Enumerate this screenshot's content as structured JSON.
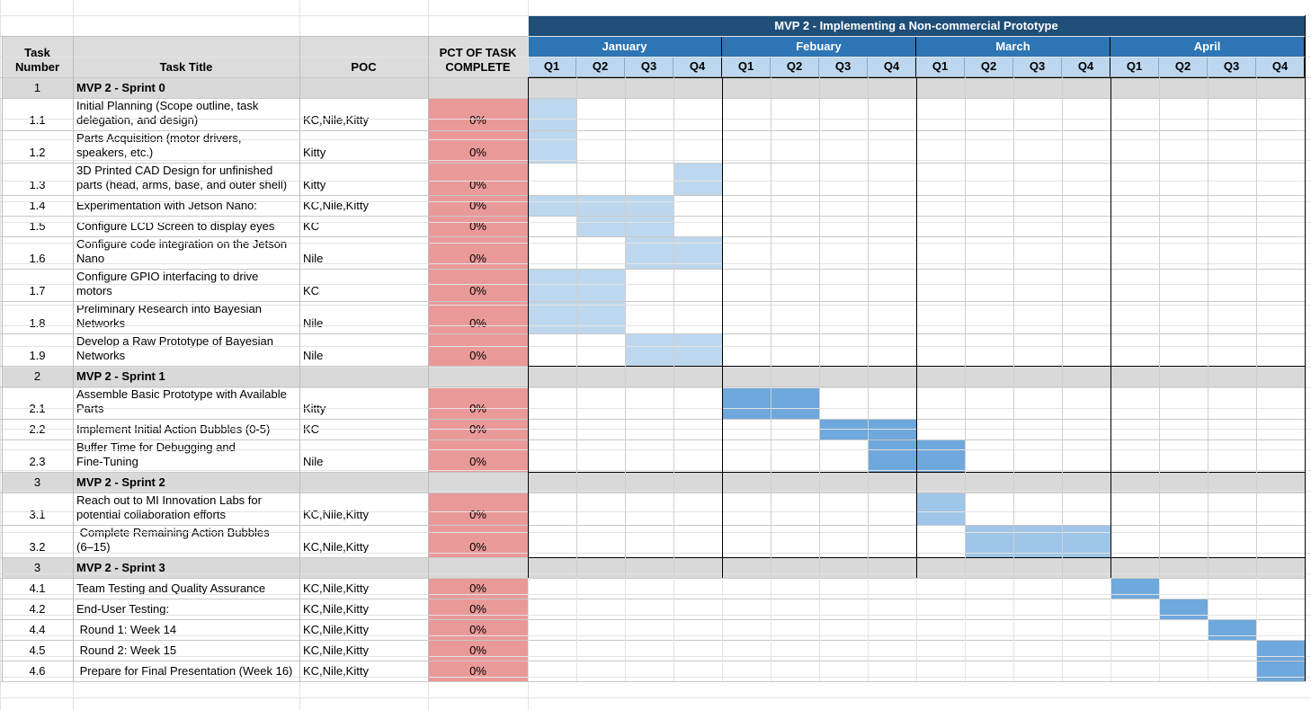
{
  "project_title": "MVP 2 -  Implementing a Non-commercial Prototype",
  "headers": {
    "task_number": "Task\nNumber",
    "task_title": "Task Title",
    "poc": "POC",
    "pct": "PCT OF TASK\nCOMPLETE"
  },
  "months": [
    "January",
    "Febuary",
    "March",
    "April"
  ],
  "quarters": [
    "Q1",
    "Q2",
    "Q3",
    "Q4",
    "Q1",
    "Q2",
    "Q3",
    "Q4",
    "Q1",
    "Q2",
    "Q3",
    "Q4",
    "Q1",
    "Q2",
    "Q3",
    "Q4"
  ],
  "colors": {
    "title_bar": "#1f4e78",
    "month_header": "#2e75b6",
    "quarter_header": "#bdd7ee",
    "section_row": "#d9d9d9",
    "pct_cell": "#ea9999",
    "bar_light": "#bdd7ee",
    "bar_medium": "#6fa8dc",
    "bar_pale": "#9fc5e8"
  },
  "rows": [
    {
      "type": "section",
      "num": "1",
      "title": "MVP 2 - Sprint 0"
    },
    {
      "type": "task",
      "num": "1.1",
      "title": "Initial Planning (Scope outline, task\ndelegation, and design)",
      "poc": "KC,Nile,Kitty",
      "pct": "0%",
      "bar": [
        0
      ],
      "bar_color": "bar_light"
    },
    {
      "type": "task",
      "num": "1.2",
      "title": "Parts Acquisition (motor drivers,\nspeakers, etc.)",
      "poc": "Kitty",
      "pct": "0%",
      "bar": [
        0
      ],
      "bar_color": "bar_light"
    },
    {
      "type": "task",
      "num": "1.3",
      "title": "3D Printed CAD Design for unfinished\nparts (head, arms, base, and outer shell)",
      "poc": "Kitty",
      "pct": "0%",
      "bar": [
        3
      ],
      "bar_color": "bar_light"
    },
    {
      "type": "task",
      "num": "1.4",
      "title": "Experimentation with Jetson Nano:",
      "poc": "KC,Nile,Kitty",
      "pct": "0%",
      "bar": [
        0,
        1,
        2
      ],
      "bar_color": "bar_light"
    },
    {
      "type": "task",
      "num": "1.5",
      "title": "Configure LCD Screen to display eyes",
      "poc": "KC",
      "pct": "0%",
      "bar": [
        1,
        2
      ],
      "bar_color": "bar_light"
    },
    {
      "type": "task",
      "num": "1.6",
      "title": "Configure code integration on the Jetson\nNano",
      "poc": "Nile",
      "pct": "0%",
      "bar": [
        2,
        3
      ],
      "bar_color": "bar_light"
    },
    {
      "type": "task",
      "num": "1.7",
      "title": "Configure GPIO interfacing to drive\nmotors",
      "poc": "KC",
      "pct": "0%",
      "bar": [
        0,
        1
      ],
      "bar_color": "bar_light"
    },
    {
      "type": "task",
      "num": "1.8",
      "title": "Preliminary Research into Bayesian\nNetworks",
      "poc": "Nile",
      "pct": "0%",
      "bar": [
        0,
        1
      ],
      "bar_color": "bar_light"
    },
    {
      "type": "task",
      "num": "1.9",
      "title": "Develop a Raw Prototype of Bayesian\nNetworks",
      "poc": "Nile",
      "pct": "0%",
      "bar": [
        2,
        3
      ],
      "bar_color": "bar_light"
    },
    {
      "type": "section",
      "num": "2",
      "title": "MVP 2 - Sprint 1"
    },
    {
      "type": "task",
      "num": "2.1",
      "title": "Assemble Basic Prototype with Available\nParts",
      "poc": "Kitty",
      "pct": "0%",
      "bar": [
        4,
        5
      ],
      "bar_color": "bar_medium"
    },
    {
      "type": "task",
      "num": "2.2",
      "title": "Implement Initial Action Bubbles (0-5)",
      "poc": "KC",
      "pct": "0%",
      "bar": [
        6,
        7
      ],
      "bar_color": "bar_medium"
    },
    {
      "type": "task",
      "num": "2.3",
      "title": "Buffer Time for Debugging and\nFine-Tuning",
      "poc": "Nile",
      "pct": "0%",
      "bar": [
        7,
        8
      ],
      "bar_color": "bar_medium"
    },
    {
      "type": "section",
      "num": "3",
      "title": "MVP 2 - Sprint 2"
    },
    {
      "type": "task",
      "num": "3.1",
      "title": "Reach out to MI Innovation Labs for\npotential collaboration efforts",
      "poc": "KC,Nile,Kitty",
      "pct": "0%",
      "bar": [
        8
      ],
      "bar_color": "bar_pale"
    },
    {
      "type": "task",
      "num": "3.2",
      "title": " Complete Remaining Action Bubbles\n(6–15)",
      "poc": "KC,Nile,Kitty",
      "pct": "0%",
      "bar": [
        9,
        10,
        11
      ],
      "bar_color": "bar_pale"
    },
    {
      "type": "section",
      "num": "3",
      "title": "MVP 2 - Sprint 3"
    },
    {
      "type": "task",
      "num": "4.1",
      "title": "Team Testing and Quality Assurance",
      "poc": "KC,Nile,Kitty",
      "pct": "0%",
      "bar": [
        12
      ],
      "bar_color": "bar_medium"
    },
    {
      "type": "task",
      "num": "4.2",
      "title": "End-User Testing:",
      "poc": "KC,Nile,Kitty",
      "pct": "0%",
      "bar": [
        13
      ],
      "bar_color": "bar_medium"
    },
    {
      "type": "task",
      "num": "4.4",
      "title": " Round 1: Week 14",
      "poc": "KC,Nile,Kitty",
      "pct": "0%",
      "bar": [
        14
      ],
      "bar_color": "bar_medium"
    },
    {
      "type": "task",
      "num": "4.5",
      "title": " Round 2: Week 15",
      "poc": "KC,Nile,Kitty",
      "pct": "0%",
      "bar": [
        15
      ],
      "bar_color": "bar_medium"
    },
    {
      "type": "task",
      "num": "4.6",
      "title": " Prepare for Final Presentation (Week 16)",
      "poc": "KC,Nile,Kitty",
      "pct": "0%",
      "bar": [
        15
      ],
      "bar_color": "bar_medium"
    }
  ]
}
